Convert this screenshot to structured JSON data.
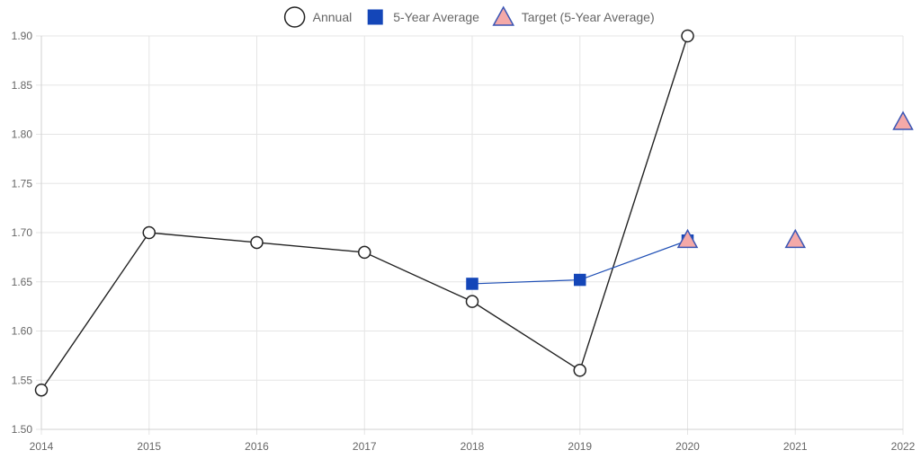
{
  "chart_data": {
    "type": "line",
    "categories": [
      "2014",
      "2015",
      "2016",
      "2017",
      "2018",
      "2019",
      "2020",
      "2021",
      "2022"
    ],
    "series": [
      {
        "name": "Annual",
        "marker": "circle",
        "values": [
          1.54,
          1.7,
          1.69,
          1.68,
          1.63,
          1.56,
          1.9,
          null,
          null
        ],
        "line_color": "#222222",
        "fill_color": "#ffffff",
        "stroke_color": "#222222"
      },
      {
        "name": "5-Year Average",
        "marker": "square",
        "values": [
          null,
          null,
          null,
          null,
          1.648,
          1.652,
          1.692,
          null,
          null
        ],
        "line_color": "#1f4fb5",
        "fill_color": "#1446b8",
        "stroke_color": "#1446b8"
      },
      {
        "name": "Target (5-Year Average)",
        "marker": "triangle",
        "values": [
          null,
          null,
          null,
          null,
          null,
          null,
          1.692,
          1.692,
          1.812
        ],
        "line_color": null,
        "fill_color": "#f4a9a8",
        "stroke_color": "#3a55b4"
      }
    ],
    "y_ticks": [
      "1.50",
      "1.55",
      "1.60",
      "1.65",
      "1.70",
      "1.75",
      "1.80",
      "1.85",
      "1.90"
    ],
    "ylim": [
      1.5,
      1.9
    ],
    "grid": true,
    "legend_position": "top-center",
    "title": "",
    "xlabel": "",
    "ylabel": ""
  }
}
